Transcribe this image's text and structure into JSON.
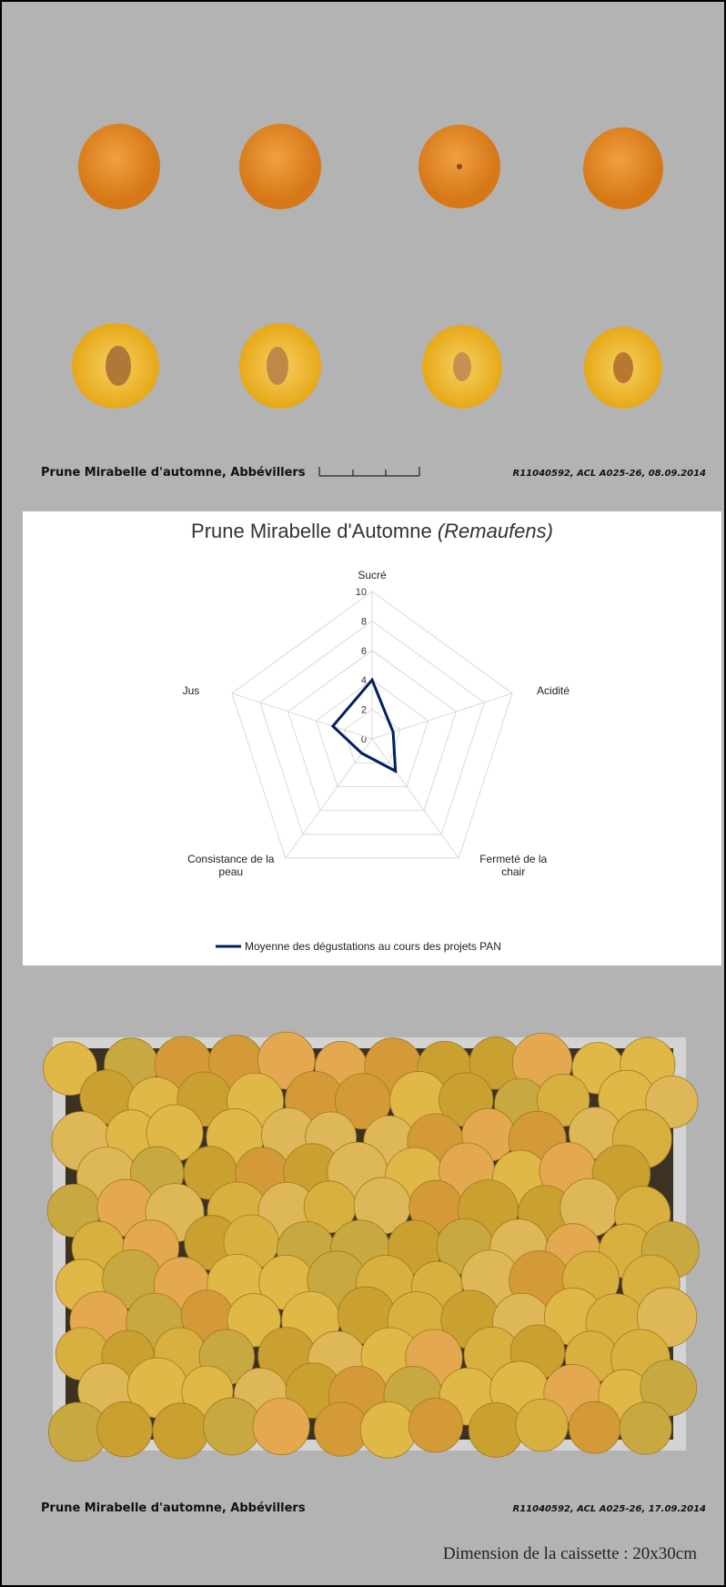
{
  "top_photo": {
    "caption": "Prune Mirabelle d'automne, Abbévillers",
    "reference": "R11040592, ACL A025-26, 08.09.2014"
  },
  "chart_data": {
    "type": "radar",
    "title": "Prune Mirabelle d'Automne",
    "title_emphasis": "(Remaufens)",
    "categories": [
      "Sucré",
      "Acidité",
      "Fermeté de la chair",
      "Consistance de la peau",
      "Jus"
    ],
    "series": [
      {
        "name": "Moyenne des dégustations au cours des projets PAN",
        "color": "#002060",
        "values": [
          4,
          1.5,
          2.7,
          1.2,
          2.8
        ]
      }
    ],
    "ylim": [
      0,
      10
    ],
    "yticks": [
      0,
      2,
      4,
      6,
      8,
      10
    ],
    "grid": true,
    "legend": "bottom"
  },
  "bottom_photo": {
    "caption": "Prune Mirabelle d'automne, Abbévillers",
    "reference": "R11040592, ACL A025-26, 17.09.2014",
    "dimension": "Dimension de la caissette : 20x30cm"
  }
}
